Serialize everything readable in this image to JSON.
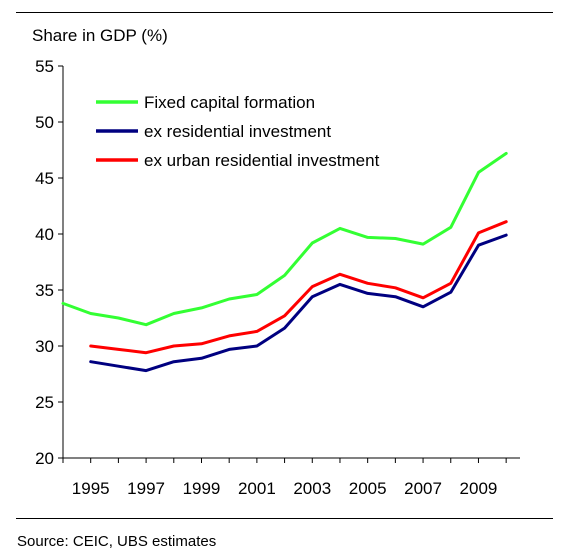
{
  "source_note": "Source: CEIC, UBS estimates",
  "chart_data": {
    "type": "line",
    "title": "",
    "ylabel": "Share in GDP (%)",
    "xlabel": "",
    "ylim": [
      20,
      55
    ],
    "yticks": [
      20,
      25,
      30,
      35,
      40,
      45,
      50,
      55
    ],
    "xlim": [
      1994,
      2010.5
    ],
    "xtick_labels": [
      "1995",
      "1997",
      "1999",
      "2001",
      "2003",
      "2005",
      "2007",
      "2009"
    ],
    "grid": false,
    "legend_position": "top-left",
    "series": [
      {
        "name": "Fixed capital formation",
        "color": "#33ff33",
        "x": [
          1994,
          1995,
          1996,
          1997,
          1998,
          1999,
          2000,
          2001,
          2002,
          2003,
          2004,
          2005,
          2006,
          2007,
          2008,
          2009,
          2010
        ],
        "values": [
          33.8,
          32.9,
          32.5,
          31.9,
          32.9,
          33.4,
          34.2,
          34.6,
          36.3,
          39.2,
          40.5,
          39.7,
          39.6,
          39.1,
          40.6,
          45.5,
          47.2
        ]
      },
      {
        "name": "ex residential investment",
        "color": "#000080",
        "x": [
          1995,
          1996,
          1997,
          1998,
          1999,
          2000,
          2001,
          2002,
          2003,
          2004,
          2005,
          2006,
          2007,
          2008,
          2009,
          2010
        ],
        "values": [
          28.6,
          28.2,
          27.8,
          28.6,
          28.9,
          29.7,
          30.0,
          31.6,
          34.4,
          35.5,
          34.7,
          34.4,
          33.5,
          34.8,
          39.0,
          39.9
        ]
      },
      {
        "name": "ex urban residential investment",
        "color": "#ff0000",
        "x": [
          1995,
          1996,
          1997,
          1998,
          1999,
          2000,
          2001,
          2002,
          2003,
          2004,
          2005,
          2006,
          2007,
          2008,
          2009,
          2010
        ],
        "values": [
          30.0,
          29.7,
          29.4,
          30.0,
          30.2,
          30.9,
          31.3,
          32.7,
          35.3,
          36.4,
          35.6,
          35.2,
          34.3,
          35.6,
          40.1,
          41.1
        ]
      }
    ]
  }
}
